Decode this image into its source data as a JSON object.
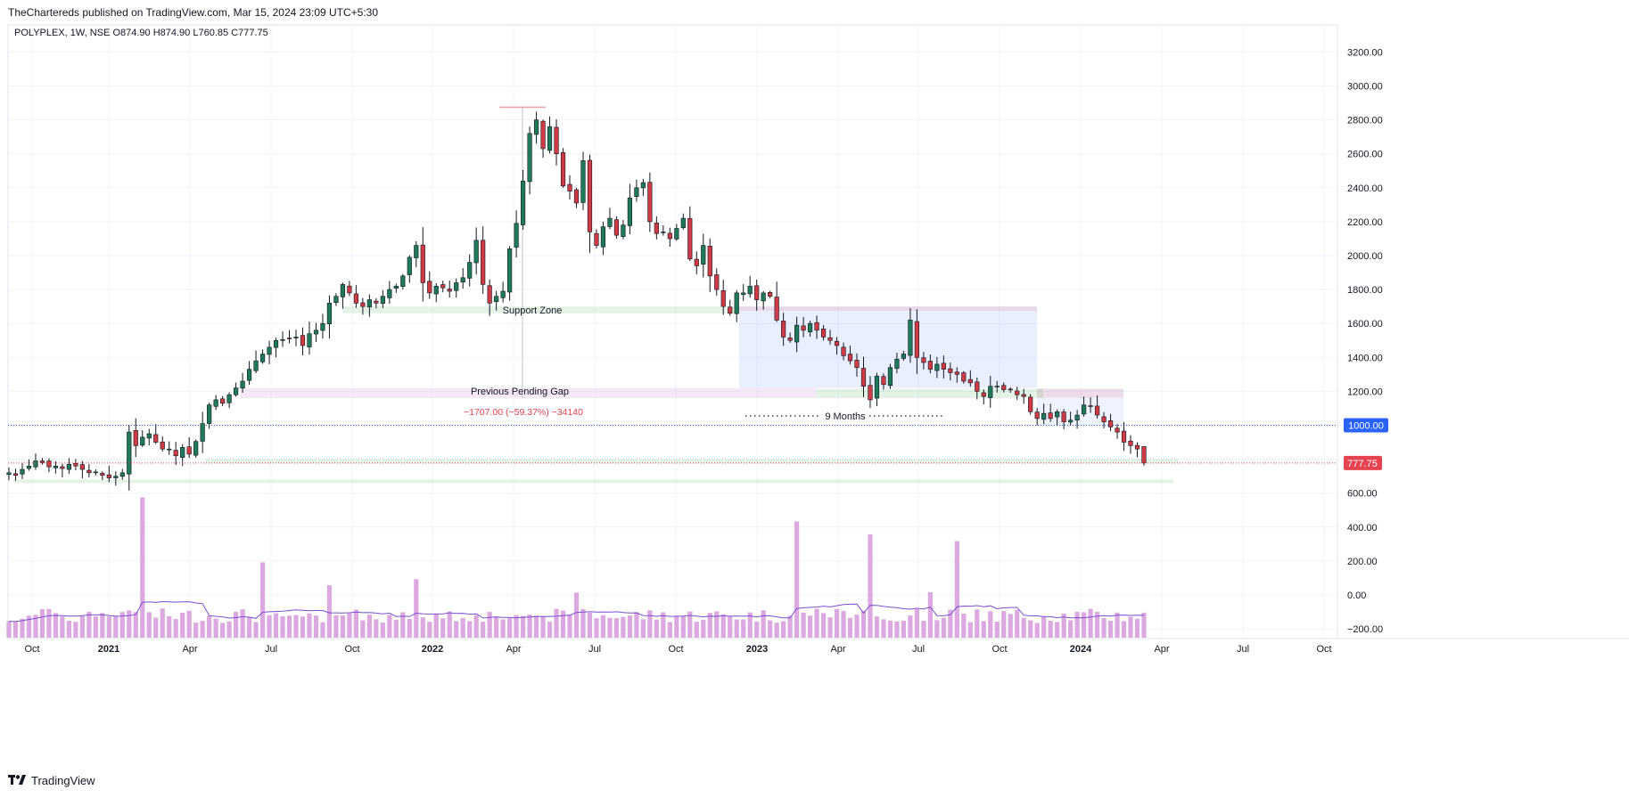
{
  "header": {
    "published": "TheChartereds published on TradingView.com, Mar 15, 2024 23:09 UTC+5:30",
    "symbol_line": "POLYPLEX, 1W, NSE  O874.90  H874.90  L760.85  C777.75"
  },
  "footer": {
    "brand": "TradingView"
  },
  "colors": {
    "up": "#26a69a",
    "up_body": "#2e8b57",
    "down": "#e5434f",
    "volume": "#dba9e0",
    "volume_ma": "#7b4fd1",
    "grid": "#f0f3fa",
    "price_line": "#e5434f",
    "level_line": "#2962ff"
  },
  "price_axis": {
    "ticks": [
      "3200.00",
      "3000.00",
      "2800.00",
      "2600.00",
      "2400.00",
      "2200.00",
      "2000.00",
      "1800.00",
      "1600.00",
      "1400.00",
      "1200.00",
      "1000.00",
      "800.00",
      "600.00",
      "400.00",
      "200.00",
      "0.00",
      "−200.00"
    ],
    "last_price_label": "777.75",
    "level_label": "1000.00"
  },
  "time_axis": {
    "labels": [
      "Oct",
      "2021",
      "Apr",
      "Jul",
      "Oct",
      "2022",
      "Apr",
      "Jul",
      "Oct",
      "2023",
      "Apr",
      "Jul",
      "Oct",
      "2024",
      "Apr",
      "Jul",
      "Oct"
    ]
  },
  "annotations": {
    "support_zone": "Support Zone",
    "pending_gap": "Previous Pending Gap",
    "measure": "−1707.00 (−59.37%) −34140",
    "months": "9 Months"
  },
  "chart_data": {
    "type": "candlestick",
    "symbol": "POLYPLEX",
    "interval": "1W",
    "exchange": "NSE",
    "last_bar": {
      "open": 874.9,
      "high": 874.9,
      "low": 760.85,
      "close": 777.75
    },
    "y_range": [
      -200,
      3200
    ],
    "x_range": [
      "2020-09-21",
      "2024-10-31"
    ],
    "weekly_closes": [
      720,
      705,
      740,
      760,
      790,
      780,
      755,
      760,
      745,
      770,
      760,
      740,
      720,
      725,
      705,
      690,
      700,
      720,
      960,
      880,
      930,
      950,
      900,
      860,
      860,
      820,
      870,
      830,
      905,
      1010,
      1120,
      1150,
      1130,
      1180,
      1220,
      1260,
      1330,
      1380,
      1420,
      1460,
      1500,
      1505,
      1510,
      1520,
      1470,
      1540,
      1560,
      1600,
      1720,
      1760,
      1830,
      1780,
      1720,
      1700,
      1740,
      1720,
      1760,
      1800,
      1820,
      1880,
      1990,
      2060,
      1840,
      1780,
      1820,
      1810,
      1790,
      1840,
      1870,
      1960,
      2090,
      1830,
      1720,
      1760,
      1790,
      2040,
      2190,
      2440,
      2720,
      2800,
      2630,
      2760,
      2600,
      2410,
      2380,
      2310,
      2560,
      2140,
      2060,
      2170,
      2220,
      2120,
      2180,
      2340,
      2400,
      2430,
      2200,
      2130,
      2140,
      2100,
      2160,
      2220,
      1980,
      1940,
      2060,
      1880,
      1800,
      1700,
      1660,
      1780,
      1780,
      1820,
      1740,
      1780,
      1760,
      1620,
      1520,
      1500,
      1590,
      1560,
      1600,
      1560,
      1520,
      1500,
      1470,
      1410,
      1380,
      1340,
      1230,
      1150,
      1290,
      1240,
      1340,
      1390,
      1420,
      1620,
      1400,
      1370,
      1330,
      1360,
      1330,
      1310,
      1300,
      1260,
      1250,
      1200,
      1170,
      1230,
      1230,
      1210,
      1210,
      1180,
      1170,
      1080,
      1040,
      1070,
      1040,
      1080,
      1020,
      1030,
      1060,
      1120,
      1110,
      1060,
      1020,
      990,
      960,
      900,
      880,
      860,
      777.75
    ],
    "annotated_levels": {
      "support_zone": [
        1660,
        1700
      ],
      "previous_pending_gap": [
        1160,
        1220
      ],
      "high_2022": 2875,
      "horizontal_level": 1000,
      "lower_support_zones": [
        [
          775,
          800
        ],
        [
          660,
          680
        ]
      ]
    },
    "volume_note": "Relative weekly volume bars with moving average line"
  }
}
